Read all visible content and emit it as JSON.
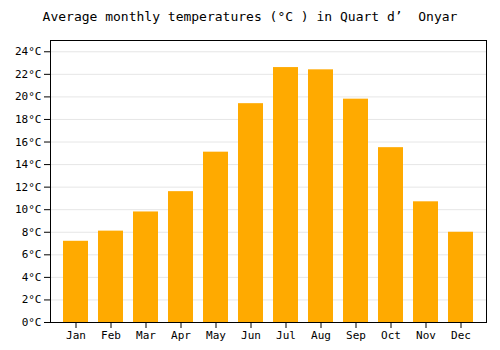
{
  "chart_data": {
    "type": "bar",
    "title": "Average monthly temperatures (°C ) in Quart d’  Onyar",
    "categories": [
      "Jan",
      "Feb",
      "Mar",
      "Apr",
      "May",
      "Jun",
      "Jul",
      "Aug",
      "Sep",
      "Oct",
      "Nov",
      "Dec"
    ],
    "values": [
      7.2,
      8.1,
      9.8,
      11.6,
      15.1,
      19.4,
      22.6,
      22.4,
      19.8,
      15.5,
      10.7,
      8.0
    ],
    "color": "#FFAA00",
    "ylim": [
      0,
      25
    ],
    "yticks": [
      {
        "value": 0,
        "label": "0°C"
      },
      {
        "value": 2,
        "label": "2°C"
      },
      {
        "value": 4,
        "label": "4°C"
      },
      {
        "value": 6,
        "label": "6°C"
      },
      {
        "value": 8,
        "label": "8°C"
      },
      {
        "value": 10,
        "label": "10°C"
      },
      {
        "value": 12,
        "label": "12°C"
      },
      {
        "value": 14,
        "label": "14°C"
      },
      {
        "value": 16,
        "label": "16°C"
      },
      {
        "value": 18,
        "label": "18°C"
      },
      {
        "value": 20,
        "label": "20°C"
      },
      {
        "value": 22,
        "label": "22°C"
      },
      {
        "value": 24,
        "label": "24°C"
      }
    ],
    "grid": true
  }
}
